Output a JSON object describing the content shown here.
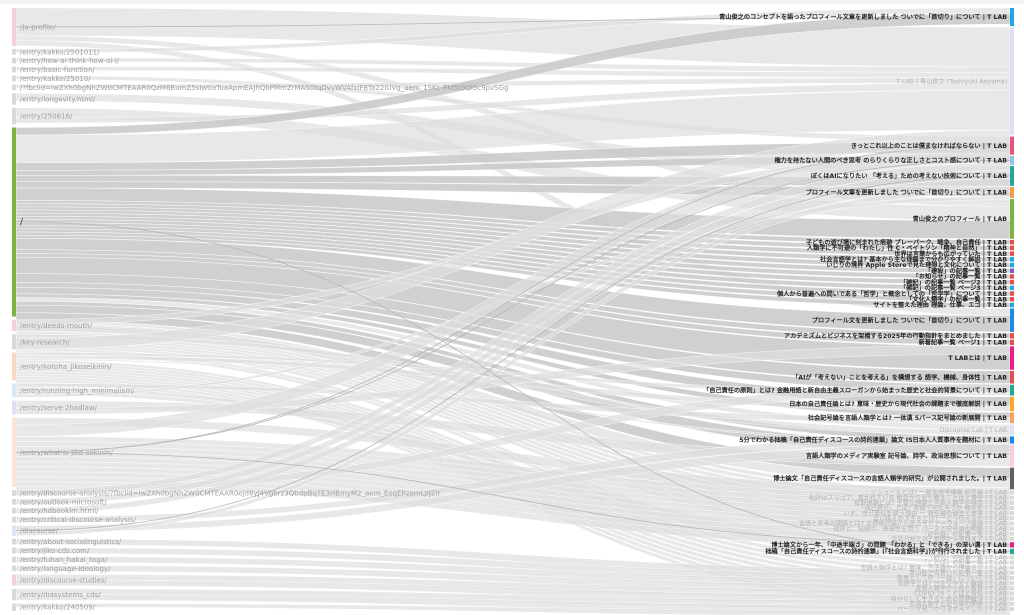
{
  "chart_data": {
    "type": "sankey",
    "sources": [
      {
        "label": "/ja-profile/",
        "value": 3.0,
        "color": "#f6cfd9"
      },
      {
        "label": "/entry/kakko/2501011/",
        "value": 0.45,
        "color": "#d9d9d9"
      },
      {
        "label": "/entry/how-ai-think-how-ai-i/",
        "value": 0.45,
        "color": "#d9d9d9"
      },
      {
        "label": "/entry/basic-function/",
        "value": 0.45,
        "color": "#d9d9d9"
      },
      {
        "label": "/entry/kakko/25010/",
        "value": 0.45,
        "color": "#d9d9d9"
      },
      {
        "label": "/?fbclid=IwZXh0bgNhZW0CMTEAAR0QzM6BumZ5sIwtiaTuaApmEAJhQbPMmZrMAS0tqDvyWVAfxlF8Ta22IUVg_aem_1SKc-Pkf5t9Ql5c9pvSGg",
        "value": 0.45,
        "color": "#d9d9d9"
      },
      {
        "label": "/entry/longevity.html/",
        "value": 0.9,
        "color": "#d9d9d9"
      },
      {
        "label": "/entry/250616/",
        "value": 1.3,
        "color": "#d9d9d9"
      },
      {
        "label": "/",
        "value": 15.0,
        "color": "#7cb342"
      },
      {
        "label": "/entry/deeds-mouth/",
        "value": 0.9,
        "color": "#f6cfd9"
      },
      {
        "label": "/key-research/",
        "value": 1.2,
        "color": "#d9d9d9"
      },
      {
        "label": "/entry/kotoha_jikoseikinin/",
        "value": 2.2,
        "color": "#f8d8c4"
      },
      {
        "label": "/entry/running-high_minimalism/",
        "value": 1.1,
        "color": "#d9e7f7"
      },
      {
        "label": "/entry/serve-2hadlaw/",
        "value": 1.1,
        "color": "#e6dcf5"
      },
      {
        "label": "/entry/what-is-jiko-sekinin/",
        "value": 5.5,
        "color": "#fde3d3"
      },
      {
        "label": "/entry/discourse-analysis/?fbclid=IwZXh0bgNhZW0CMTEAAR0ejd8yJ4Vgbrz3QbdpBqTE3HBmyM2_aem_EoqEPzemLpJ2ir",
        "value": 0.45,
        "color": "#d9d9d9"
      },
      {
        "label": "/entry/outlook-microsoft/",
        "value": 0.45,
        "color": "#d9d9d9"
      },
      {
        "label": "/entry/hdbooklm.html/",
        "value": 0.45,
        "color": "#d9d9d9"
      },
      {
        "label": "/entry/critical-discourse-analysis/",
        "value": 0.45,
        "color": "#d9d9d9"
      },
      {
        "label": "/discourse/",
        "value": 0.8,
        "color": "#dde3f7"
      },
      {
        "label": "/entry/about-sociolinguistics/",
        "value": 0.45,
        "color": "#d9d9d9"
      },
      {
        "label": "/entry/jiko-cds.com/",
        "value": 0.45,
        "color": "#d9d9d9"
      },
      {
        "label": "/entry/fuhan_hakai_toga/",
        "value": 0.45,
        "color": "#d9d9d9"
      },
      {
        "label": "/entry/language-ideology/",
        "value": 0.45,
        "color": "#d9d9d9"
      },
      {
        "label": "/entry/discourse-studies/",
        "value": 0.9,
        "color": "#f6cfd9"
      },
      {
        "label": "/entry/diasystems_cds/",
        "value": 0.9,
        "color": "#d9d9d9"
      },
      {
        "label": "/entry/kakko/240509/",
        "value": 0.6,
        "color": "#d9d9d9"
      }
    ],
    "targets": [
      {
        "label": "青山俊之のコンセプトを語ったプロフィール文章を更新しました ついでに「首切り」について | T LAB",
        "value": 1.0,
        "color": "#1ea7e1",
        "faded": false
      },
      {
        "label": "T LAB | 青山俊之 (Toshiyuki Aoyama)",
        "value": 6.0,
        "color": "#e6dcf5",
        "faded": true
      },
      {
        "label": "きっとこれ以上のことは僕まなければならない | T LAB",
        "value": 1.0,
        "color": "#e8527a",
        "faded": false
      },
      {
        "label": "権力を持たない人間のべき思考 のらりくらりな正しさとコスト感について | T LAB",
        "value": 0.5,
        "color": "#90c2ef",
        "faded": false
      },
      {
        "label": "ぼくはAIになりたい 「考える」ための考えない技術について | T LAB",
        "value": 1.1,
        "color": "#26a69a",
        "faded": false
      },
      {
        "label": "プロフィール文章を更新しました ついでに「首切り」について | T LAB",
        "value": 0.6,
        "color": "#f39c4a",
        "faded": false
      },
      {
        "label": "青山俊之のプロフィール | T LAB",
        "value": 2.2,
        "color": "#7cb342",
        "faded": false
      },
      {
        "label": "子どもの遊び場に刻まれた痕跡 プレーパーク、戦争、自己責任 | T LAB",
        "value": 0.25,
        "color": "#e05050",
        "faded": false
      },
      {
        "label": "人類学に不可避の「わたし」性 C・ベイトソン「精神と自然」 | T LAB",
        "value": 0.25,
        "color": "#e05050",
        "faded": false
      },
      {
        "label": "世界は言葉からも広がっていた | T LAB",
        "value": 0.25,
        "color": "#e05050",
        "faded": false
      },
      {
        "label": "社会言語学とは? 基本から主な理論まで分かりやすく解説 | T LAB",
        "value": 0.25,
        "color": "#1ea7e1",
        "faded": false
      },
      {
        "label": "いじりの境界 Apple Storeで見た理想と文化について | T LAB",
        "value": 0.25,
        "color": "#1ea7e1",
        "faded": false
      },
      {
        "label": "「建設」の記事一覧 | T LAB",
        "value": 0.25,
        "color": "#7e57c2",
        "faded": false
      },
      {
        "label": "「お知らせ」の記事一覧 | T LAB",
        "value": 0.25,
        "color": "#e05050",
        "faded": false
      },
      {
        "label": "「雑記」の記事一覧 ページ2 | T LAB",
        "value": 0.25,
        "color": "#e05050",
        "faded": false
      },
      {
        "label": "「雑記」の記事一覧 ページ3 | T LAB",
        "value": 0.25,
        "color": "#1ea7e1",
        "faded": false
      },
      {
        "label": "個人から普遍への問いである「哲学」と概念としての「哲学学」について | T LAB",
        "value": 0.25,
        "color": "#e05050",
        "faded": false
      },
      {
        "label": "「文化人類学」の記事一覧 | T LAB",
        "value": 0.25,
        "color": "#e05050",
        "faded": false
      },
      {
        "label": "サイトを整えた理由 理論、仕事、エゴ | T LAB",
        "value": 0.25,
        "color": "#1ea7e1",
        "faded": false
      },
      {
        "label": "プロフィール文を更新しました ついでに「首切り」について | T LAB",
        "value": 1.3,
        "color": "#1e88e5",
        "faded": false
      },
      {
        "label": "アカデミズムとビジネスを架橋する2025年の行動指針をまとめました | T LAB",
        "value": 0.3,
        "color": "#e05050",
        "faded": false
      },
      {
        "label": "新着記事一覧 ページ1 | T LAB",
        "value": 0.3,
        "color": "#e05050",
        "faded": false
      },
      {
        "label": "T LABとは | T LAB",
        "value": 1.3,
        "color": "#e91e8c",
        "faded": false
      },
      {
        "label": "「AIが「考えない」ことを考える」を構想する 語学、機械、身体性 | T LAB",
        "value": 0.7,
        "color": "#e05050",
        "faded": false
      },
      {
        "label": "「自己責任の原則」とは? 金融用語と新自由主義スローガンから始まった歴史と社会的背景について | T LAB",
        "value": 0.6,
        "color": "#26a69a",
        "faded": false
      },
      {
        "label": "日本の自己責任論とは? 意味・歴史から現代社会の課題まで徹底解説 | T LAB",
        "value": 0.8,
        "color": "#ffa726",
        "faded": false
      },
      {
        "label": "社会記号論を言語人類学とは? 一体漢 5パース記号論の新展開 | T LAB",
        "value": 0.6,
        "color": "#f4a460",
        "faded": false
      },
      {
        "label": "Discourse Lab | T LAB",
        "value": 0.6,
        "color": "#dde3f7",
        "faded": true
      },
      {
        "label": "5分でわかる拙稿「自己責任ディスコースの詩的連鎖」論文 IS日本人人質事件を題材に | T LAB",
        "value": 0.4,
        "color": "#1e88e5",
        "faded": false
      },
      {
        "label": "言語人類学のメディア実験室 記号論、詩学、政治思想について | T LAB",
        "value": 1.2,
        "color": "#f6cfd9",
        "faded": false
      },
      {
        "label": "博士論文「自己責任ディスコースの言語人類学的研究」が公開されました。| T LAB",
        "value": 1.2,
        "color": "#616161",
        "faded": false
      },
      {
        "label": "ソシュールとは? 一般言語学講義 記号論 | T LAB",
        "value": 0.22,
        "color": "#d9d9d9",
        "faded": true
      },
      {
        "label": "批評はスリゴア、書かれている 概念から見た教えことばと責任 | T LAB",
        "value": 0.22,
        "color": "#d9d9d9",
        "faded": true
      },
      {
        "label": "批評理論とは? 主要な理論と言語人類学的視点 | T LAB",
        "value": 0.22,
        "color": "#d9d9d9",
        "faded": true
      },
      {
        "label": "「自己責任」とは? 英語で何と言うか 概念史 | T LAB",
        "value": 0.22,
        "color": "#d9d9d9",
        "faded": true
      },
      {
        "label": "いま、自己責任を問う理由 ー 責任論の過去と未来 | T LAB",
        "value": 0.22,
        "color": "#d9d9d9",
        "faded": true
      },
      {
        "label": "言い換えのスキルとは? ーどう伝えるか | T LAB",
        "value": 0.22,
        "color": "#d9d9d9",
        "faded": true
      },
      {
        "label": "言語と思考の関係とは? 言語相対論から見るサピア＝ウォーフ仮説 | T LAB",
        "value": 0.22,
        "color": "#d9d9d9",
        "faded": true
      },
      {
        "label": "批評と、伝統の、表現性を問う パースと記号論の関係 | T LAB",
        "value": 0.22,
        "color": "#d9d9d9",
        "faded": true
      },
      {
        "label": "「記号論」の記事一覧 | T LAB",
        "value": 0.22,
        "color": "#d9d9d9",
        "faded": true
      },
      {
        "label": "会話分析とは? 基礎から実践まで | T LAB",
        "value": 0.22,
        "color": "#d9d9d9",
        "faded": true
      },
      {
        "label": "博士論文から一年、「中途半端さ」の問題 「わかる」と「できる」の深い溝 | T LAB",
        "value": 0.3,
        "color": "#e91e8c",
        "faded": false
      },
      {
        "label": "拙稿「自己責任ディスコースの詩的連鎖」(『社会言語科学』)が刊行されました | T LAB",
        "value": 0.3,
        "color": "#26a69a",
        "faded": false
      },
      {
        "label": "「研究」の記事一覧 | T LAB",
        "value": 0.22,
        "color": "#d9d9d9",
        "faded": true
      },
      {
        "label": "「ことば」の記事一覧 | T LAB",
        "value": 0.22,
        "color": "#d9d9d9",
        "faded": true
      },
      {
        "label": "言語人類学とは? 意味、方法論から理論まで | T LAB",
        "value": 0.22,
        "color": "#d9d9d9",
        "faded": true
      },
      {
        "label": "青山俊之の書いた記事一覧 | T LAB",
        "value": 0.22,
        "color": "#d9d9d9",
        "faded": true
      },
      {
        "label": "敬意としての「ー話」について | T LAB",
        "value": 0.22,
        "color": "#d9d9d9",
        "faded": true
      },
      {
        "label": "言語学とは? 分かりやすく解説 | T LAB",
        "value": 0.22,
        "color": "#d9d9d9",
        "faded": true
      },
      {
        "label": "言語人類学から見た教育 | T LAB",
        "value": 0.22,
        "color": "#d9d9d9",
        "faded": true
      },
      {
        "label": "COVID-19 ことばと責任 | T LAB",
        "value": 0.22,
        "color": "#d9d9d9",
        "faded": true
      },
      {
        "label": "自分らしく生きるための問題解決 | T LAB",
        "value": 0.22,
        "color": "#d9d9d9",
        "faded": true
      },
      {
        "label": "言語人類学と記号論の関係 | T LAB",
        "value": 0.22,
        "color": "#d9d9d9",
        "faded": true
      },
      {
        "label": "ページが見つかりませんでした | T LAB",
        "value": 0.22,
        "color": "#d9d9d9",
        "faded": true
      }
    ],
    "links": [
      [
        0,
        1,
        2.2
      ],
      [
        0,
        6,
        0.4
      ],
      [
        0,
        19,
        0.4
      ],
      [
        1,
        0,
        0.3
      ],
      [
        2,
        1,
        0.3
      ],
      [
        3,
        1,
        0.3
      ],
      [
        4,
        2,
        0.3
      ],
      [
        5,
        1,
        0.3
      ],
      [
        6,
        4,
        0.6
      ],
      [
        7,
        6,
        0.8
      ],
      [
        7,
        1,
        0.4
      ],
      [
        8,
        0,
        0.6
      ],
      [
        8,
        1,
        2.2
      ],
      [
        8,
        2,
        0.6
      ],
      [
        8,
        3,
        0.4
      ],
      [
        8,
        4,
        0.5
      ],
      [
        8,
        5,
        0.5
      ],
      [
        8,
        6,
        1.0
      ],
      [
        8,
        7,
        0.25
      ],
      [
        8,
        8,
        0.25
      ],
      [
        8,
        9,
        0.25
      ],
      [
        8,
        10,
        0.25
      ],
      [
        8,
        11,
        0.25
      ],
      [
        8,
        12,
        0.25
      ],
      [
        8,
        13,
        0.25
      ],
      [
        8,
        14,
        0.25
      ],
      [
        8,
        15,
        0.25
      ],
      [
        8,
        16,
        0.25
      ],
      [
        8,
        17,
        0.25
      ],
      [
        8,
        18,
        0.25
      ],
      [
        8,
        19,
        0.9
      ],
      [
        8,
        20,
        0.3
      ],
      [
        8,
        21,
        0.3
      ],
      [
        8,
        22,
        1.3
      ],
      [
        8,
        23,
        0.7
      ],
      [
        8,
        24,
        0.4
      ],
      [
        8,
        25,
        0.5
      ],
      [
        8,
        26,
        0.3
      ],
      [
        8,
        27,
        0.3
      ],
      [
        8,
        28,
        0.3
      ],
      [
        8,
        29,
        0.6
      ],
      [
        8,
        30,
        0.6
      ],
      [
        8,
        31,
        0.22
      ],
      [
        8,
        32,
        0.22
      ],
      [
        8,
        33,
        0.22
      ],
      [
        8,
        34,
        0.22
      ],
      [
        8,
        35,
        0.22
      ],
      [
        8,
        36,
        0.22
      ],
      [
        8,
        37,
        0.22
      ],
      [
        8,
        38,
        0.22
      ],
      [
        8,
        39,
        0.22
      ],
      [
        8,
        40,
        0.22
      ],
      [
        8,
        43,
        0.22
      ],
      [
        8,
        44,
        0.22
      ],
      [
        9,
        2,
        0.4
      ],
      [
        9,
        30,
        0.5
      ],
      [
        10,
        27,
        0.3
      ],
      [
        10,
        1,
        0.9
      ],
      [
        11,
        24,
        0.2
      ],
      [
        11,
        25,
        0.3
      ],
      [
        11,
        28,
        0.1
      ],
      [
        11,
        45,
        0.22
      ],
      [
        11,
        46,
        0.22
      ],
      [
        11,
        47,
        0.22
      ],
      [
        11,
        48,
        0.22
      ],
      [
        11,
        49,
        0.22
      ],
      [
        11,
        50,
        0.22
      ],
      [
        11,
        51,
        0.22
      ],
      [
        11,
        52,
        0.22
      ],
      [
        11,
        53,
        0.22
      ],
      [
        11,
        54,
        0.22
      ],
      [
        12,
        26,
        0.3
      ],
      [
        12,
        41,
        0.3
      ],
      [
        12,
        42,
        0.3
      ],
      [
        12,
        5,
        0.2
      ],
      [
        13,
        29,
        0.6
      ],
      [
        13,
        21,
        0.5
      ],
      [
        14,
        30,
        0.6
      ],
      [
        14,
        1,
        0.9
      ],
      [
        14,
        31,
        0.4
      ],
      [
        14,
        32,
        0.4
      ],
      [
        14,
        33,
        0.4
      ],
      [
        14,
        34,
        0.4
      ],
      [
        14,
        35,
        0.4
      ],
      [
        14,
        36,
        0.4
      ],
      [
        14,
        37,
        0.4
      ],
      [
        14,
        38,
        0.4
      ],
      [
        14,
        39,
        0.4
      ],
      [
        14,
        40,
        0.4
      ],
      [
        14,
        23,
        0.5
      ],
      [
        15,
        1,
        0.45
      ],
      [
        16,
        1,
        0.45
      ],
      [
        17,
        1,
        0.45
      ],
      [
        18,
        27,
        0.45
      ],
      [
        19,
        27,
        0.5
      ],
      [
        19,
        1,
        0.3
      ],
      [
        20,
        45,
        0.45
      ],
      [
        21,
        46,
        0.45
      ],
      [
        22,
        47,
        0.45
      ],
      [
        23,
        48,
        0.45
      ],
      [
        24,
        49,
        0.45
      ],
      [
        24,
        50,
        0.45
      ],
      [
        25,
        51,
        0.45
      ],
      [
        25,
        52,
        0.45
      ],
      [
        26,
        53,
        0.3
      ],
      [
        26,
        54,
        0.3
      ]
    ]
  }
}
